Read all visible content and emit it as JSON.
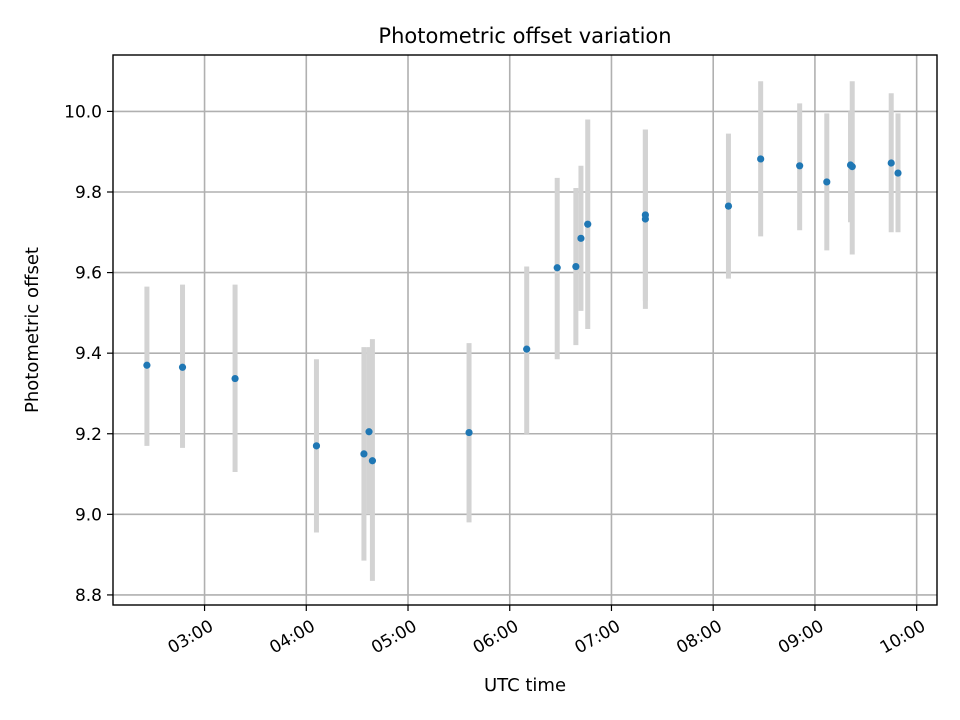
{
  "chart_data": {
    "type": "scatter",
    "title": "Photometric offset variation",
    "xlabel": "UTC time",
    "ylabel": "Photometric offset",
    "x_ticks": [
      "03:00",
      "04:00",
      "05:00",
      "06:00",
      "07:00",
      "08:00",
      "09:00",
      "10:00"
    ],
    "y_ticks": [
      "8.8",
      "9.0",
      "9.2",
      "9.4",
      "9.6",
      "9.8",
      "10.0"
    ],
    "xlim": [
      "02:06",
      "10:12"
    ],
    "ylim": [
      8.775,
      10.14
    ],
    "grid": true,
    "colors": {
      "point": "#1f77b4",
      "error_bar": "#d3d3d3",
      "grid": "#b0b0b0"
    },
    "points": [
      {
        "x": "02:26",
        "y": 9.37,
        "err_low": 9.17,
        "err_high": 9.565
      },
      {
        "x": "02:47",
        "y": 9.365,
        "err_low": 9.165,
        "err_high": 9.57
      },
      {
        "x": "03:18",
        "y": 9.337,
        "err_low": 9.105,
        "err_high": 9.57
      },
      {
        "x": "04:06",
        "y": 9.17,
        "err_low": 8.955,
        "err_high": 9.385
      },
      {
        "x": "04:34",
        "y": 9.15,
        "err_low": 8.885,
        "err_high": 9.415
      },
      {
        "x": "04:37",
        "y": 9.205,
        "err_low": 9.0,
        "err_high": 9.415
      },
      {
        "x": "04:39",
        "y": 9.133,
        "err_low": 8.835,
        "err_high": 9.435
      },
      {
        "x": "05:36",
        "y": 9.203,
        "err_low": 8.98,
        "err_high": 9.425
      },
      {
        "x": "06:10",
        "y": 9.41,
        "err_low": 9.2,
        "err_high": 9.615
      },
      {
        "x": "06:28",
        "y": 9.612,
        "err_low": 9.385,
        "err_high": 9.835
      },
      {
        "x": "06:39",
        "y": 9.615,
        "err_low": 9.42,
        "err_high": 9.81
      },
      {
        "x": "06:42",
        "y": 9.685,
        "err_low": 9.505,
        "err_high": 9.865
      },
      {
        "x": "06:46",
        "y": 9.72,
        "err_low": 9.46,
        "err_high": 9.98
      },
      {
        "x": "07:20",
        "y": 9.733,
        "err_low": 9.51,
        "err_high": 9.955
      },
      {
        "x": "07:20",
        "y": 9.743,
        "err_low": 9.53,
        "err_high": 9.955
      },
      {
        "x": "08:09",
        "y": 9.765,
        "err_low": 9.585,
        "err_high": 9.945
      },
      {
        "x": "08:28",
        "y": 9.882,
        "err_low": 9.69,
        "err_high": 10.075
      },
      {
        "x": "08:51",
        "y": 9.865,
        "err_low": 9.705,
        "err_high": 10.02
      },
      {
        "x": "09:07",
        "y": 9.825,
        "err_low": 9.655,
        "err_high": 9.995
      },
      {
        "x": "09:21",
        "y": 9.867,
        "err_low": 9.725,
        "err_high": 10.0
      },
      {
        "x": "09:22",
        "y": 9.863,
        "err_low": 9.645,
        "err_high": 10.075
      },
      {
        "x": "09:45",
        "y": 9.872,
        "err_low": 9.7,
        "err_high": 10.045
      },
      {
        "x": "09:49",
        "y": 9.847,
        "err_low": 9.7,
        "err_high": 9.995
      }
    ]
  }
}
